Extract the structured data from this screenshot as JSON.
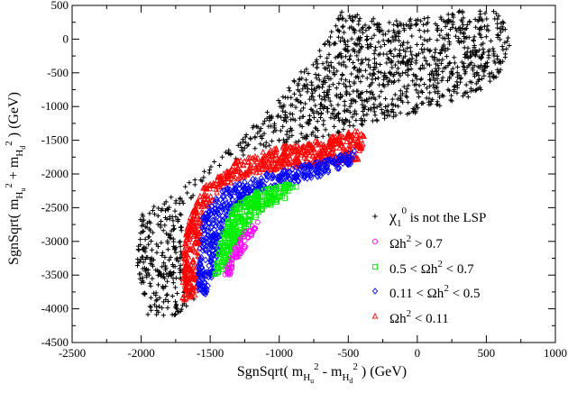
{
  "chart_data": {
    "type": "scatter",
    "title": "",
    "xlabel": {
      "prefix": "SgnSqrt( m",
      "sub1": "H",
      "subsub1": "u",
      "sup1": "2",
      "mid": " - m",
      "sub2": "H",
      "subsub2": "d",
      "sup2": "2",
      "suffix": " ) (GeV)"
    },
    "ylabel": {
      "prefix": "SgnSqrt( m",
      "sub1": "H",
      "subsub1": "u",
      "sup1": "2",
      "mid": " + m",
      "sub2": "H",
      "subsub2": "d",
      "sup2": "2",
      "suffix": " ) (GeV)"
    },
    "xlim": [
      -2500,
      1000
    ],
    "ylim": [
      -4500,
      500
    ],
    "xticks": [
      -2500,
      -2000,
      -1500,
      -1000,
      -500,
      0,
      500,
      1000
    ],
    "yticks": [
      -4500,
      -4000,
      -3500,
      -3000,
      -2500,
      -2000,
      -1500,
      -1000,
      -500,
      0,
      500
    ],
    "legend_position": "lower-right",
    "series": [
      {
        "name": "not-lsp",
        "marker": "plus",
        "color": "#000000",
        "label": {
          "pre": "χ",
          "sub": "1",
          "sup": "0",
          "post": " is not the LSP"
        },
        "region": [
          [
            -1950,
            -4100
          ],
          [
            -2050,
            -3200
          ],
          [
            -2000,
            -2600
          ],
          [
            -1700,
            -2200
          ],
          [
            -1350,
            -1600
          ],
          [
            -1050,
            -1000
          ],
          [
            -850,
            -500
          ],
          [
            -650,
            0
          ],
          [
            -550,
            420
          ],
          [
            -300,
            320
          ],
          [
            0,
            300
          ],
          [
            300,
            420
          ],
          [
            550,
            440
          ],
          [
            700,
            200
          ],
          [
            650,
            -300
          ],
          [
            550,
            -650
          ],
          [
            350,
            -900
          ],
          [
            0,
            -1100
          ],
          [
            -350,
            -1250
          ],
          [
            -500,
            -1400
          ],
          [
            -800,
            -1500
          ],
          [
            -1150,
            -1650
          ],
          [
            -1450,
            -1900
          ],
          [
            -1600,
            -2200
          ],
          [
            -1700,
            -2700
          ],
          [
            -1700,
            -3300
          ],
          [
            -1600,
            -3900
          ],
          [
            -1750,
            -4100
          ]
        ],
        "count": 1400
      },
      {
        "name": "omega-gt-0.11",
        "marker": "triangle",
        "color": "#ff0000",
        "label": {
          "pre": "Ωh",
          "sub": "",
          "sup": "2",
          "post": " < 0.11"
        },
        "region": [
          [
            -1700,
            -3900
          ],
          [
            -1700,
            -3200
          ],
          [
            -1650,
            -2600
          ],
          [
            -1550,
            -2200
          ],
          [
            -1300,
            -1800
          ],
          [
            -1000,
            -1600
          ],
          [
            -700,
            -1500
          ],
          [
            -450,
            -1350
          ],
          [
            -380,
            -1450
          ],
          [
            -420,
            -1800
          ],
          [
            -600,
            -1850
          ],
          [
            -900,
            -1900
          ],
          [
            -1200,
            -2000
          ],
          [
            -1420,
            -2200
          ],
          [
            -1550,
            -2600
          ],
          [
            -1580,
            -3200
          ],
          [
            -1600,
            -3800
          ]
        ],
        "count": 700
      },
      {
        "name": "omega-0.11-0.5",
        "marker": "diamond",
        "color": "#0000ff",
        "label": {
          "pre": "0.11 < Ωh",
          "sub": "",
          "sup": "2",
          "post": " < 0.5"
        },
        "region": [
          [
            -1600,
            -3800
          ],
          [
            -1580,
            -3200
          ],
          [
            -1550,
            -2600
          ],
          [
            -1420,
            -2250
          ],
          [
            -1200,
            -2050
          ],
          [
            -900,
            -1900
          ],
          [
            -600,
            -1750
          ],
          [
            -450,
            -1650
          ],
          [
            -480,
            -1850
          ],
          [
            -650,
            -2000
          ],
          [
            -900,
            -2150
          ],
          [
            -1150,
            -2250
          ],
          [
            -1330,
            -2500
          ],
          [
            -1420,
            -2900
          ],
          [
            -1470,
            -3500
          ],
          [
            -1520,
            -3800
          ]
        ],
        "count": 500
      },
      {
        "name": "omega-0.5-0.7",
        "marker": "square",
        "color": "#00ee00",
        "label": {
          "pre": "0.5 < Ωh",
          "sub": "",
          "sup": "2",
          "post": " < 0.7"
        },
        "region": [
          [
            -1470,
            -3500
          ],
          [
            -1420,
            -2900
          ],
          [
            -1330,
            -2500
          ],
          [
            -1150,
            -2250
          ],
          [
            -950,
            -2150
          ],
          [
            -850,
            -2200
          ],
          [
            -950,
            -2350
          ],
          [
            -1100,
            -2500
          ],
          [
            -1250,
            -2850
          ],
          [
            -1350,
            -3200
          ],
          [
            -1400,
            -3500
          ]
        ],
        "count": 300
      },
      {
        "name": "omega-gt-0.7",
        "marker": "circle",
        "color": "#ff00ff",
        "label": {
          "pre": "Ωh",
          "sub": "",
          "sup": "2",
          "post": " > 0.7"
        },
        "region": [
          [
            -1400,
            -3500
          ],
          [
            -1350,
            -3200
          ],
          [
            -1250,
            -2850
          ],
          [
            -1150,
            -2700
          ],
          [
            -1200,
            -2950
          ],
          [
            -1300,
            -3250
          ],
          [
            -1350,
            -3500
          ]
        ],
        "count": 70
      }
    ]
  }
}
